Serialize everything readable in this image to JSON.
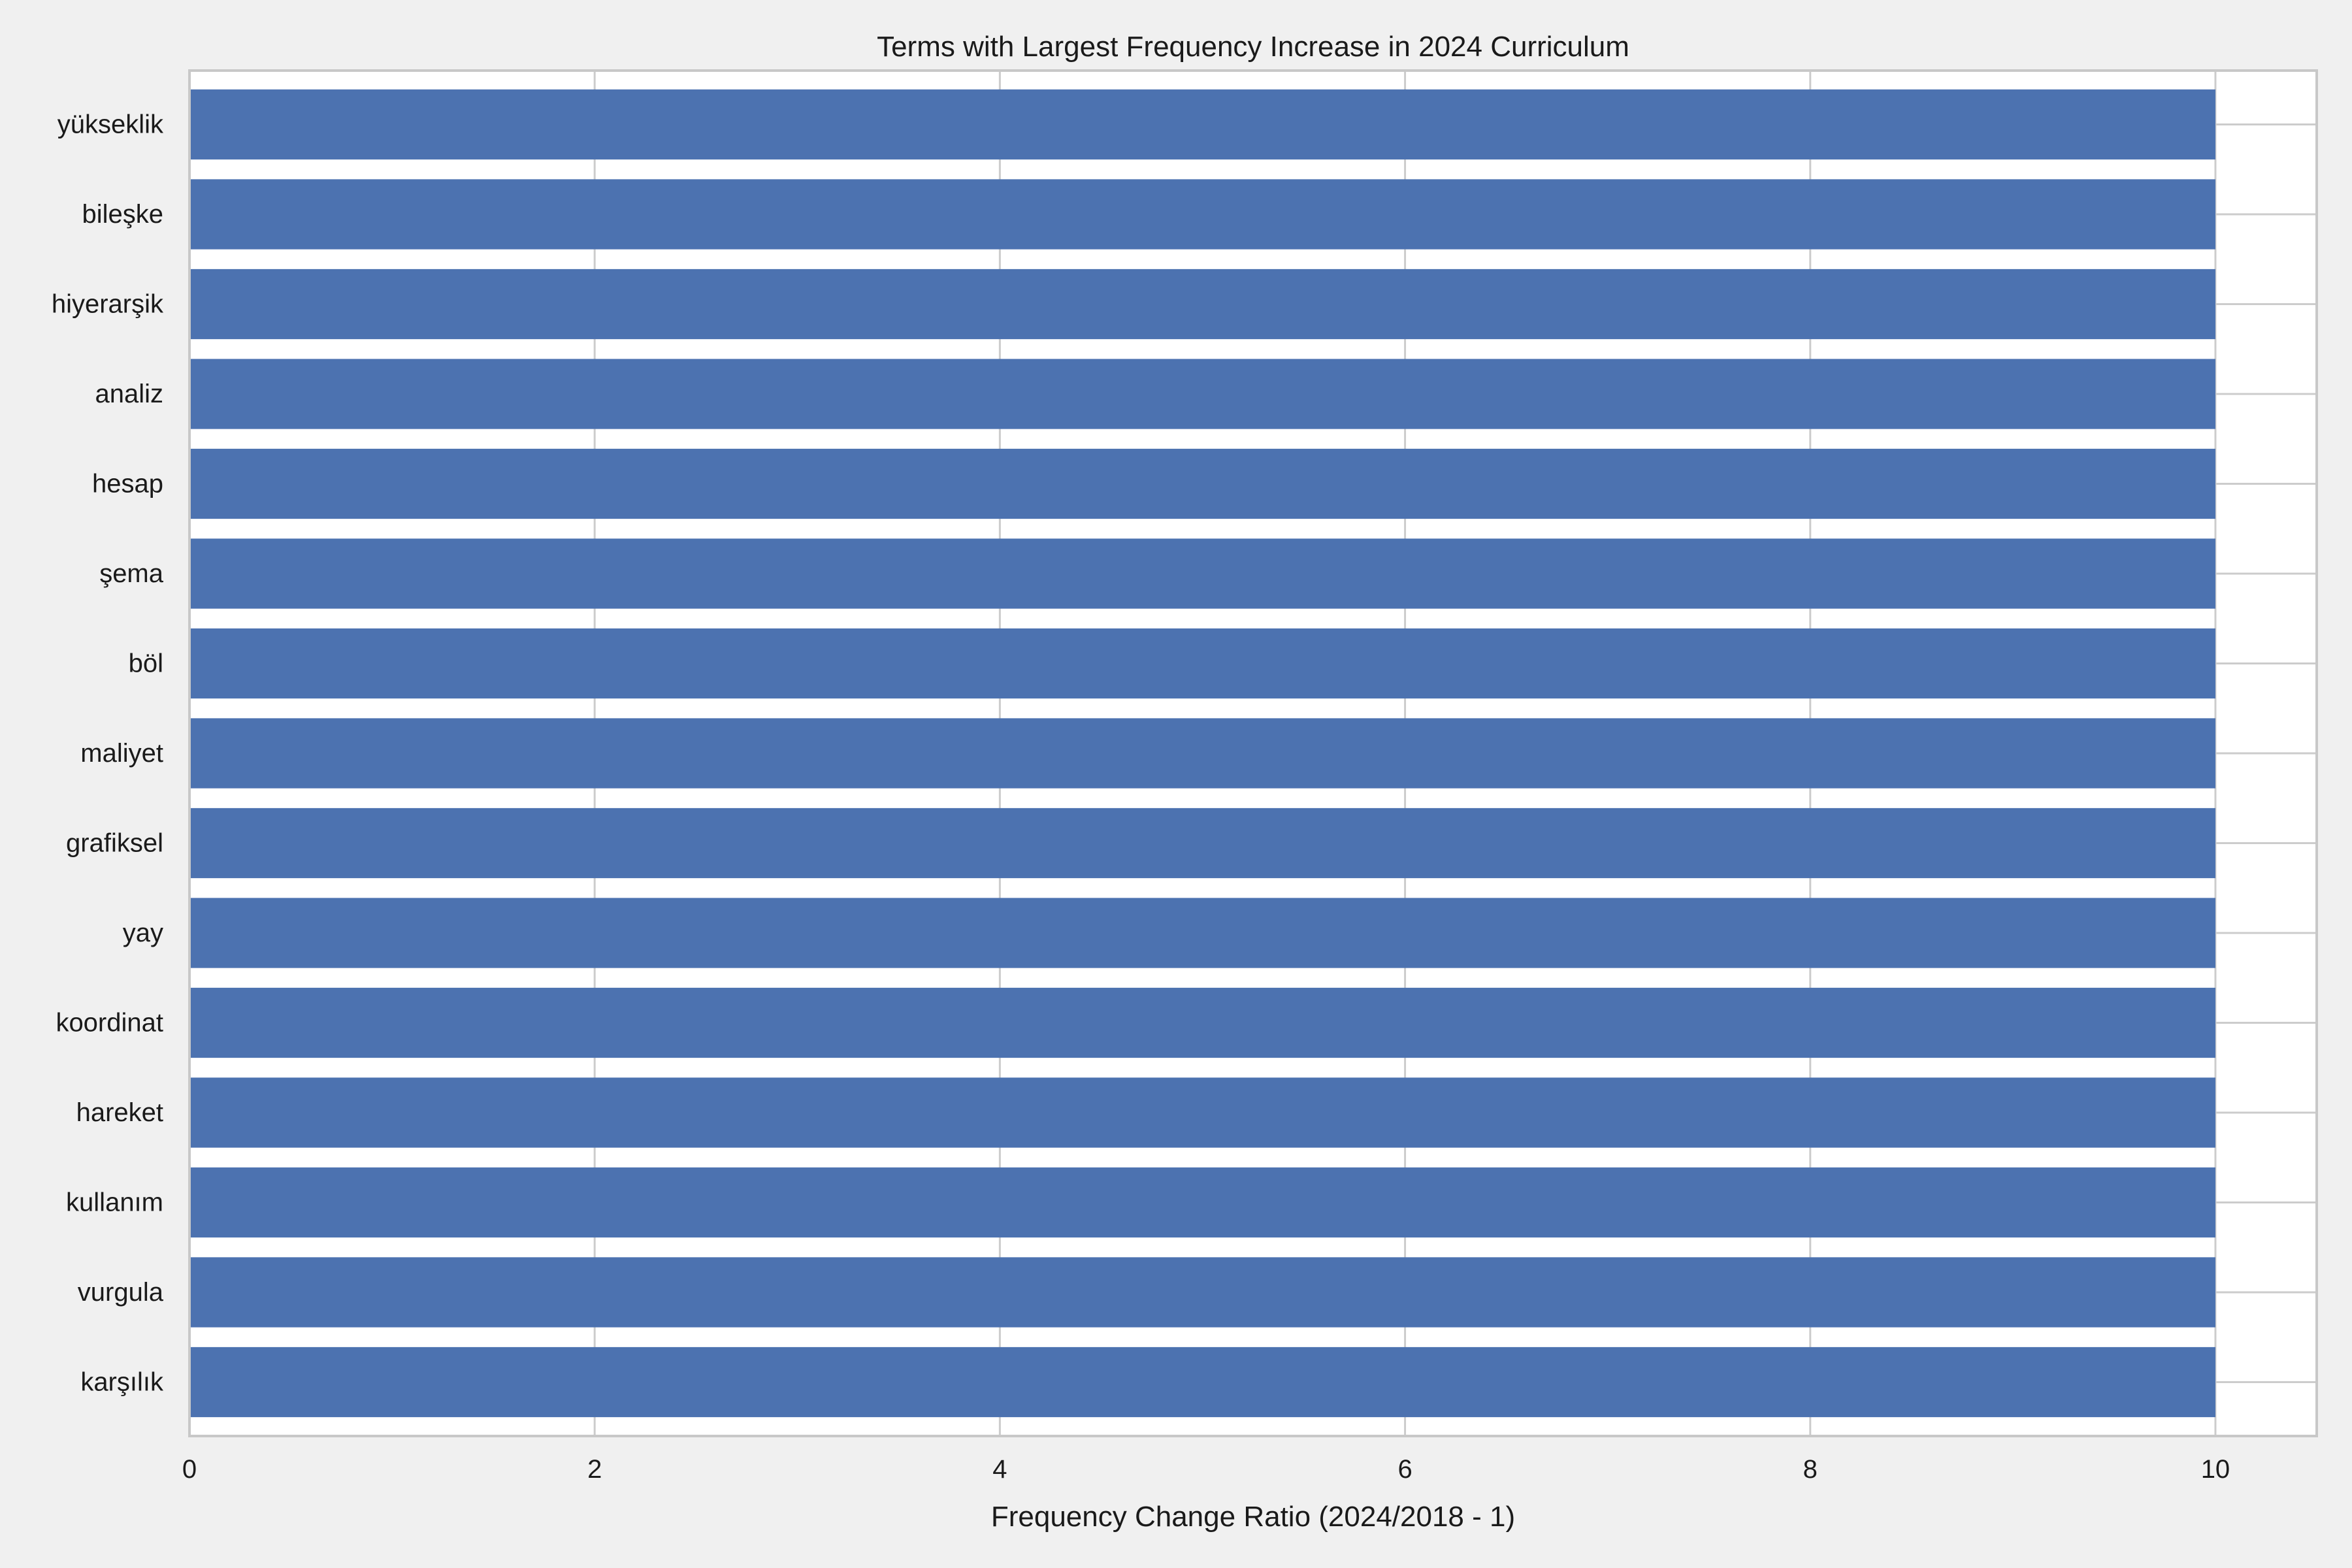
{
  "chart_data": {
    "type": "bar",
    "orientation": "horizontal",
    "title": "Terms with Largest Frequency Increase in 2024 Curriculum",
    "xlabel": "Frequency Change Ratio (2024/2018 - 1)",
    "ylabel": "",
    "xlim": [
      0,
      10.5
    ],
    "xticks": [
      "0",
      "2",
      "4",
      "6",
      "8",
      "10"
    ],
    "grid": true,
    "categories": [
      "yükseklik",
      "bileşke",
      "hiyerarşik",
      "analiz",
      "hesap",
      "şema",
      "böl",
      "maliyet",
      "grafiksel",
      "yay",
      "koordinat",
      "hareket",
      "kullanım",
      "vurgula",
      "karşılık"
    ],
    "values": [
      10,
      10,
      10,
      10,
      10,
      10,
      10,
      10,
      10,
      10,
      10,
      10,
      10,
      10,
      10
    ],
    "bar_color": "#4c72b0",
    "plot_background": "#ffffff",
    "figure_background": "#f0f0f0",
    "grid_color": "#cccccc"
  }
}
